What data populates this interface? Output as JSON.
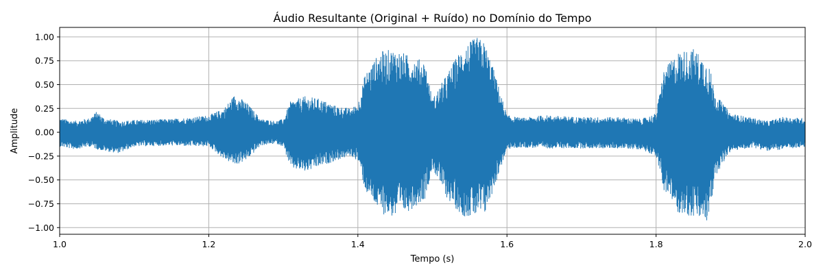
{
  "chart_data": {
    "type": "line",
    "title": "Áudio Resultante (Original + Ruído) no Domínio do Tempo",
    "xlabel": "Tempo (s)",
    "ylabel": "Amplitude",
    "xlim": [
      1.0,
      2.0
    ],
    "ylim": [
      -1.07,
      1.1
    ],
    "xticks": [
      1.0,
      1.2,
      1.4,
      1.6,
      1.8,
      2.0
    ],
    "xtick_labels": [
      "1.0",
      "1.2",
      "1.4",
      "1.6",
      "1.8",
      "2.0"
    ],
    "yticks": [
      -1.0,
      -0.75,
      -0.5,
      -0.25,
      0.0,
      0.25,
      0.5,
      0.75,
      1.0
    ],
    "ytick_labels": [
      "−1.00",
      "−0.75",
      "−0.50",
      "−0.25",
      "0.00",
      "0.25",
      "0.50",
      "0.75",
      "1.00"
    ],
    "grid": true,
    "series_color": "#1f77b4",
    "envelope": {
      "t": [
        1.0,
        1.02,
        1.04,
        1.05,
        1.06,
        1.08,
        1.1,
        1.15,
        1.18,
        1.2,
        1.22,
        1.235,
        1.25,
        1.27,
        1.29,
        1.3,
        1.31,
        1.33,
        1.35,
        1.37,
        1.39,
        1.4,
        1.41,
        1.43,
        1.45,
        1.47,
        1.49,
        1.5,
        1.52,
        1.54,
        1.56,
        1.57,
        1.58,
        1.6,
        1.62,
        1.65,
        1.7,
        1.75,
        1.78,
        1.8,
        1.81,
        1.83,
        1.85,
        1.87,
        1.88,
        1.9,
        1.93,
        1.95,
        1.97,
        2.0
      ],
      "upper": [
        0.15,
        0.12,
        0.15,
        0.22,
        0.15,
        0.12,
        0.13,
        0.14,
        0.16,
        0.18,
        0.25,
        0.4,
        0.32,
        0.14,
        0.12,
        0.14,
        0.33,
        0.38,
        0.35,
        0.28,
        0.25,
        0.3,
        0.62,
        0.85,
        0.88,
        0.8,
        0.75,
        0.35,
        0.62,
        0.9,
        1.0,
        0.95,
        0.72,
        0.18,
        0.15,
        0.18,
        0.16,
        0.16,
        0.14,
        0.2,
        0.65,
        0.85,
        0.88,
        0.75,
        0.4,
        0.2,
        0.15,
        0.12,
        0.16,
        0.15
      ],
      "lower": [
        -0.15,
        -0.18,
        -0.15,
        -0.18,
        -0.2,
        -0.22,
        -0.15,
        -0.14,
        -0.15,
        -0.15,
        -0.28,
        -0.35,
        -0.3,
        -0.14,
        -0.12,
        -0.15,
        -0.38,
        -0.42,
        -0.36,
        -0.3,
        -0.25,
        -0.3,
        -0.62,
        -0.85,
        -0.9,
        -0.82,
        -0.7,
        -0.38,
        -0.7,
        -0.88,
        -0.9,
        -0.88,
        -0.65,
        -0.18,
        -0.16,
        -0.17,
        -0.17,
        -0.17,
        -0.18,
        -0.25,
        -0.6,
        -0.85,
        -0.9,
        -0.95,
        -0.45,
        -0.2,
        -0.16,
        -0.2,
        -0.18,
        -0.16
      ]
    }
  }
}
